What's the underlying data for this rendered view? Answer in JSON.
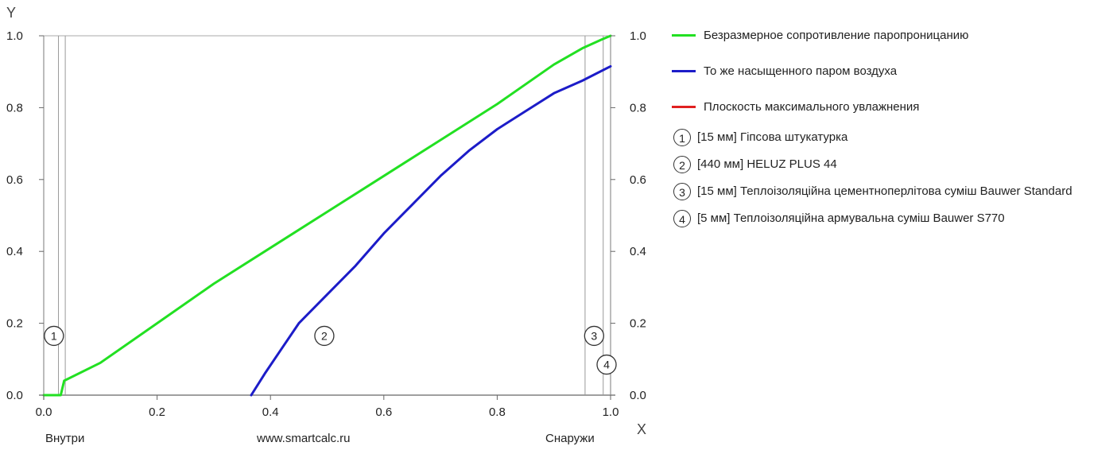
{
  "chart_data": {
    "type": "line",
    "xlabel": "X",
    "ylabel": "Y",
    "xlim": [
      0.0,
      1.0
    ],
    "ylim": [
      0.0,
      1.0
    ],
    "x_ticks": [
      "0.0",
      "0.2",
      "0.4",
      "0.6",
      "0.8",
      "1.0"
    ],
    "y_ticks": [
      "0.0",
      "0.2",
      "0.4",
      "0.6",
      "0.8",
      "1.0"
    ],
    "y2_ticks": [
      "0.0",
      "0.2",
      "0.4",
      "0.6",
      "0.8",
      "1.0"
    ],
    "bottom_labels": {
      "left": "Внутри",
      "center": "www.smartcalc.ru",
      "right": "Снаружи"
    },
    "legend_position": "right",
    "series": [
      {
        "name": "Безразмерное сопротивление паропроницанию",
        "color": "#22e022",
        "points": [
          [
            0.0,
            0.0
          ],
          [
            0.03,
            0.0
          ],
          [
            0.036,
            0.04
          ],
          [
            0.1,
            0.09
          ],
          [
            0.2,
            0.2
          ],
          [
            0.3,
            0.31
          ],
          [
            0.4,
            0.41
          ],
          [
            0.5,
            0.51
          ],
          [
            0.6,
            0.61
          ],
          [
            0.7,
            0.71
          ],
          [
            0.8,
            0.81
          ],
          [
            0.9,
            0.92
          ],
          [
            0.95,
            0.965
          ],
          [
            0.985,
            0.99
          ],
          [
            1.0,
            1.0
          ]
        ]
      },
      {
        "name": "То же насыщенного паром воздуха",
        "color": "#1c1cc8",
        "points": [
          [
            0.366,
            0.0
          ],
          [
            0.39,
            0.06
          ],
          [
            0.42,
            0.13
          ],
          [
            0.45,
            0.2
          ],
          [
            0.5,
            0.28
          ],
          [
            0.55,
            0.36
          ],
          [
            0.6,
            0.45
          ],
          [
            0.65,
            0.53
          ],
          [
            0.7,
            0.61
          ],
          [
            0.75,
            0.68
          ],
          [
            0.8,
            0.74
          ],
          [
            0.85,
            0.79
          ],
          [
            0.9,
            0.84
          ],
          [
            0.95,
            0.875
          ],
          [
            1.0,
            0.915
          ]
        ]
      },
      {
        "name": "Плоскость максимального увлажнения",
        "color": "#e02020",
        "points": []
      }
    ],
    "layer_boundaries": [
      0.0,
      0.026,
      0.038,
      0.955,
      0.987,
      1.0
    ],
    "layers": [
      {
        "num": "1",
        "label": "[15 мм] Гіпсова штукатурка",
        "marker_x": 0.018,
        "marker_y": 0.165
      },
      {
        "num": "2",
        "label": "[440 мм] HELUZ PLUS 44",
        "marker_x": 0.495,
        "marker_y": 0.165
      },
      {
        "num": "3",
        "label": "[15 мм] Теплоізоляційна цементноперлітова суміш Bauwer Standard",
        "marker_x": 0.971,
        "marker_y": 0.165
      },
      {
        "num": "4",
        "label": "[5 мм] Теплоізоляційна армувальна суміш Bauwer S770",
        "marker_x": 0.993,
        "marker_y": 0.085
      }
    ]
  }
}
